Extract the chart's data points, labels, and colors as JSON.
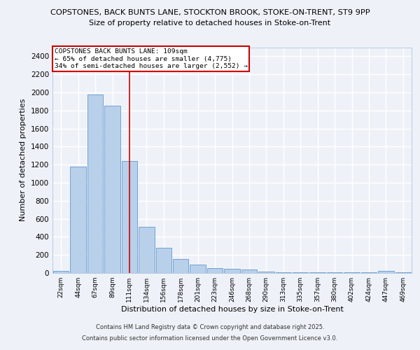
{
  "title1": "COPSTONES, BACK BUNTS LANE, STOCKTON BROOK, STOKE-ON-TRENT, ST9 9PP",
  "title2": "Size of property relative to detached houses in Stoke-on-Trent",
  "xlabel": "Distribution of detached houses by size in Stoke-on-Trent",
  "ylabel": "Number of detached properties",
  "categories": [
    "22sqm",
    "44sqm",
    "67sqm",
    "89sqm",
    "111sqm",
    "134sqm",
    "156sqm",
    "178sqm",
    "201sqm",
    "223sqm",
    "246sqm",
    "268sqm",
    "290sqm",
    "313sqm",
    "335sqm",
    "357sqm",
    "380sqm",
    "402sqm",
    "424sqm",
    "447sqm",
    "469sqm"
  ],
  "values": [
    25,
    1175,
    1975,
    1850,
    1240,
    515,
    280,
    155,
    90,
    55,
    45,
    40,
    15,
    5,
    5,
    5,
    5,
    5,
    5,
    20,
    5
  ],
  "bar_color": "#b8d0ea",
  "bar_edge_color": "#6699cc",
  "marker_index": 4,
  "marker_color": "#cc0000",
  "annotation_title": "COPSTONES BACK BUNTS LANE: 109sqm",
  "annotation_line1": "← 65% of detached houses are smaller (4,775)",
  "annotation_line2": "34% of semi-detached houses are larger (2,552) →",
  "ylim": [
    0,
    2500
  ],
  "yticks": [
    0,
    200,
    400,
    600,
    800,
    1000,
    1200,
    1400,
    1600,
    1800,
    2000,
    2200,
    2400
  ],
  "bg_color": "#eef2f8",
  "grid_color": "#ffffff",
  "footer1": "Contains HM Land Registry data © Crown copyright and database right 2025.",
  "footer2": "Contains public sector information licensed under the Open Government Licence v3.0."
}
